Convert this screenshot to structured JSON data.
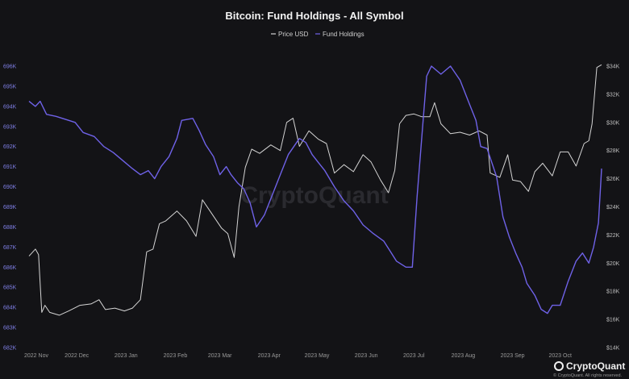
{
  "chart_data": {
    "type": "line",
    "title": "Bitcoin: Fund Holdings - All Symbol",
    "legend": [
      "Price USD",
      "Fund Holdings"
    ],
    "left_axis": {
      "ticks": [
        "696K",
        "695K",
        "694K",
        "693K",
        "692K",
        "691K",
        "690K",
        "689K",
        "688K",
        "687K",
        "686K",
        "685K",
        "684K",
        "683K",
        "682K"
      ],
      "ylim": [
        682000,
        696000
      ]
    },
    "right_axis": {
      "ticks": [
        "$34K",
        "$32K",
        "$30K",
        "$28K",
        "$26K",
        "$24K",
        "$22K",
        "$20K",
        "$18K",
        "$16K",
        "$14K"
      ],
      "ylim": [
        14000,
        34000
      ]
    },
    "x_ticks": [
      "2022 Nov",
      "2022 Dec",
      "2023 Jan",
      "2023 Feb",
      "2023 Mar",
      "2023 Apr",
      "2023 May",
      "2023 Jun",
      "2023 Jul",
      "2023 Aug",
      "2023 Sep",
      "2023 Oct"
    ],
    "x_range": [
      "2022-11-01",
      "2023-10-27"
    ],
    "series": [
      {
        "name": "Fund Holdings",
        "color": "#6f62e8",
        "axis": "left",
        "points": [
          [
            "2022-11-01",
            694250
          ],
          [
            "2022-11-05",
            694000
          ],
          [
            "2022-11-08",
            694250
          ],
          [
            "2022-11-12",
            693600
          ],
          [
            "2022-11-18",
            693500
          ],
          [
            "2022-11-24",
            693350
          ],
          [
            "2022-11-30",
            693200
          ],
          [
            "2022-12-05",
            692700
          ],
          [
            "2022-12-12",
            692500
          ],
          [
            "2022-12-18",
            692000
          ],
          [
            "2022-12-24",
            691700
          ],
          [
            "2022-12-30",
            691300
          ],
          [
            "2023-01-05",
            690900
          ],
          [
            "2023-01-10",
            690600
          ],
          [
            "2023-01-15",
            690800
          ],
          [
            "2023-01-19",
            690400
          ],
          [
            "2023-01-23",
            691000
          ],
          [
            "2023-01-28",
            691500
          ],
          [
            "2023-02-02",
            692400
          ],
          [
            "2023-02-05",
            693300
          ],
          [
            "2023-02-12",
            693400
          ],
          [
            "2023-02-16",
            692800
          ],
          [
            "2023-02-20",
            692100
          ],
          [
            "2023-02-25",
            691500
          ],
          [
            "2023-03-01",
            690600
          ],
          [
            "2023-03-05",
            691000
          ],
          [
            "2023-03-08",
            690600
          ],
          [
            "2023-03-12",
            690200
          ],
          [
            "2023-03-16",
            689900
          ],
          [
            "2023-03-20",
            689200
          ],
          [
            "2023-03-24",
            688000
          ],
          [
            "2023-03-29",
            688600
          ],
          [
            "2023-04-02",
            689400
          ],
          [
            "2023-04-08",
            690600
          ],
          [
            "2023-04-13",
            691600
          ],
          [
            "2023-04-20",
            692400
          ],
          [
            "2023-04-24",
            692200
          ],
          [
            "2023-04-28",
            691600
          ],
          [
            "2023-05-02",
            691200
          ],
          [
            "2023-05-06",
            690800
          ],
          [
            "2023-05-12",
            690000
          ],
          [
            "2023-05-18",
            689300
          ],
          [
            "2023-05-24",
            688800
          ],
          [
            "2023-05-30",
            688100
          ],
          [
            "2023-06-05",
            687700
          ],
          [
            "2023-06-12",
            687300
          ],
          [
            "2023-06-16",
            686800
          ],
          [
            "2023-06-20",
            686300
          ],
          [
            "2023-06-26",
            686000
          ],
          [
            "2023-06-30",
            686000
          ],
          [
            "2023-07-03",
            689500
          ],
          [
            "2023-07-07",
            693500
          ],
          [
            "2023-07-09",
            695500
          ],
          [
            "2023-07-12",
            696000
          ],
          [
            "2023-07-18",
            695600
          ],
          [
            "2023-07-24",
            696000
          ],
          [
            "2023-07-30",
            695300
          ],
          [
            "2023-08-05",
            694100
          ],
          [
            "2023-08-09",
            693300
          ],
          [
            "2023-08-12",
            692000
          ],
          [
            "2023-08-16",
            691900
          ],
          [
            "2023-08-22",
            690500
          ],
          [
            "2023-08-26",
            688500
          ],
          [
            "2023-08-30",
            687500
          ],
          [
            "2023-09-03",
            686700
          ],
          [
            "2023-09-07",
            686000
          ],
          [
            "2023-09-10",
            685200
          ],
          [
            "2023-09-15",
            684600
          ],
          [
            "2023-09-19",
            683900
          ],
          [
            "2023-09-23",
            683700
          ],
          [
            "2023-09-26",
            684100
          ],
          [
            "2023-10-01",
            684100
          ],
          [
            "2023-10-06",
            685300
          ],
          [
            "2023-10-11",
            686300
          ],
          [
            "2023-10-15",
            686700
          ],
          [
            "2023-10-19",
            686200
          ],
          [
            "2023-10-22",
            687000
          ],
          [
            "2023-10-25",
            688200
          ],
          [
            "2023-10-27",
            690900
          ]
        ]
      },
      {
        "name": "Price USD",
        "color": "#d4d4d4",
        "axis": "right",
        "points": [
          [
            "2022-11-01",
            20500
          ],
          [
            "2022-11-05",
            21000
          ],
          [
            "2022-11-07",
            20600
          ],
          [
            "2022-11-09",
            16500
          ],
          [
            "2022-11-11",
            17000
          ],
          [
            "2022-11-14",
            16500
          ],
          [
            "2022-11-20",
            16300
          ],
          [
            "2022-11-26",
            16600
          ],
          [
            "2022-12-03",
            17000
          ],
          [
            "2022-12-10",
            17100
          ],
          [
            "2022-12-15",
            17400
          ],
          [
            "2022-12-19",
            16700
          ],
          [
            "2022-12-25",
            16800
          ],
          [
            "2022-12-31",
            16600
          ],
          [
            "2023-01-05",
            16800
          ],
          [
            "2023-01-10",
            17400
          ],
          [
            "2023-01-14",
            20800
          ],
          [
            "2023-01-18",
            21000
          ],
          [
            "2023-01-22",
            22800
          ],
          [
            "2023-01-26",
            23000
          ],
          [
            "2023-02-02",
            23700
          ],
          [
            "2023-02-08",
            23000
          ],
          [
            "2023-02-14",
            21900
          ],
          [
            "2023-02-18",
            24500
          ],
          [
            "2023-02-24",
            23500
          ],
          [
            "2023-03-02",
            22500
          ],
          [
            "2023-03-06",
            22100
          ],
          [
            "2023-03-10",
            20400
          ],
          [
            "2023-03-13",
            24000
          ],
          [
            "2023-03-17",
            26800
          ],
          [
            "2023-03-21",
            28100
          ],
          [
            "2023-03-26",
            27800
          ],
          [
            "2023-04-02",
            28400
          ],
          [
            "2023-04-08",
            28000
          ],
          [
            "2023-04-12",
            30000
          ],
          [
            "2023-04-16",
            30300
          ],
          [
            "2023-04-20",
            28300
          ],
          [
            "2023-04-26",
            29400
          ],
          [
            "2023-05-02",
            28800
          ],
          [
            "2023-05-07",
            28500
          ],
          [
            "2023-05-12",
            26400
          ],
          [
            "2023-05-18",
            27000
          ],
          [
            "2023-05-24",
            26500
          ],
          [
            "2023-05-30",
            27700
          ],
          [
            "2023-06-04",
            27200
          ],
          [
            "2023-06-10",
            25900
          ],
          [
            "2023-06-15",
            25000
          ],
          [
            "2023-06-19",
            26600
          ],
          [
            "2023-06-22",
            29900
          ],
          [
            "2023-06-26",
            30500
          ],
          [
            "2023-07-01",
            30600
          ],
          [
            "2023-07-06",
            30400
          ],
          [
            "2023-07-11",
            30400
          ],
          [
            "2023-07-14",
            31400
          ],
          [
            "2023-07-18",
            29900
          ],
          [
            "2023-07-24",
            29200
          ],
          [
            "2023-07-30",
            29300
          ],
          [
            "2023-08-05",
            29100
          ],
          [
            "2023-08-11",
            29400
          ],
          [
            "2023-08-16",
            29100
          ],
          [
            "2023-08-18",
            26400
          ],
          [
            "2023-08-24",
            26100
          ],
          [
            "2023-08-29",
            27700
          ],
          [
            "2023-09-01",
            25900
          ],
          [
            "2023-09-06",
            25800
          ],
          [
            "2023-09-11",
            25100
          ],
          [
            "2023-09-15",
            26500
          ],
          [
            "2023-09-20",
            27100
          ],
          [
            "2023-09-26",
            26200
          ],
          [
            "2023-10-01",
            27900
          ],
          [
            "2023-10-06",
            27900
          ],
          [
            "2023-10-11",
            26900
          ],
          [
            "2023-10-16",
            28500
          ],
          [
            "2023-10-19",
            28700
          ],
          [
            "2023-10-21",
            29900
          ],
          [
            "2023-10-24",
            33900
          ],
          [
            "2023-10-27",
            34100
          ]
        ]
      }
    ],
    "legend_position": "top-center",
    "grid": false
  },
  "watermark": "CryptoQuant",
  "branding": {
    "name": "CryptoQuant",
    "copyright": "© CryptoQuant. All rights reserved."
  }
}
